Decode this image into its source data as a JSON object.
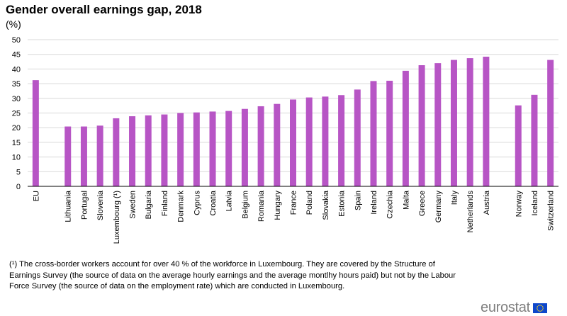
{
  "chart_data": {
    "type": "bar",
    "title": "Gender overall earnings gap, 2018",
    "ylabel": "(%)",
    "xlabel": "",
    "ylim": [
      0,
      50
    ],
    "yticks": [
      0,
      5,
      10,
      15,
      20,
      25,
      30,
      35,
      40,
      45,
      50
    ],
    "grid": true,
    "color": "#b755c5",
    "categories": [
      "EU",
      "",
      "Lithuania",
      "Portugal",
      "Slovenia",
      "Luxembourg (¹)",
      "Sweden",
      "Bulgaria",
      "Finland",
      "Denmark",
      "Cyprus",
      "Croatia",
      "Latvia",
      "Belgium",
      "Romania",
      "Hungary",
      "France",
      "Poland",
      "Slovakia",
      "Estonia",
      "Spain",
      "Ireland",
      "Czechia",
      "Malta",
      "Greece",
      "Germany",
      "Italy",
      "Netherlands",
      "Austria",
      "",
      "Norway",
      "Iceland",
      "Switzerland"
    ],
    "values": [
      36.2,
      null,
      20.4,
      20.4,
      20.7,
      23.2,
      23.9,
      24.2,
      24.5,
      25.0,
      25.2,
      25.5,
      25.7,
      26.4,
      27.3,
      28.1,
      29.6,
      30.3,
      30.6,
      31.1,
      33.0,
      35.9,
      36.0,
      39.4,
      41.3,
      42.0,
      43.1,
      43.7,
      44.2,
      null,
      27.6,
      31.2,
      43.1
    ]
  },
  "footnote": "(¹) The cross-border workers account for over 40 % of the workforce in Luxembourg. They are covered by the Structure of Earnings Survey (the source of data on the average hourly earnings and the average montlhy hours paid) but not by the Labour Force Survey (the source of data on the employment rate) which are conducted in Luxembourg.",
  "logo": {
    "text": "eurostat",
    "flag_color": "#0e47cb",
    "star_color": "#ffd617"
  }
}
